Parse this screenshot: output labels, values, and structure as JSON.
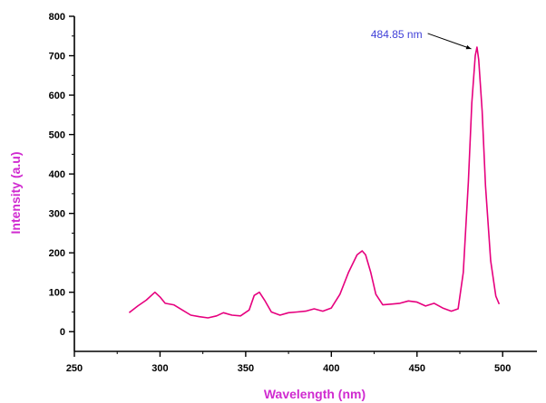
{
  "chart_data": {
    "type": "line",
    "xlabel": "Wavelength (nm)",
    "ylabel": "Intensity (a.u)",
    "xlim": [
      250,
      520
    ],
    "ylim": [
      -50,
      800
    ],
    "x_ticks": [
      250,
      300,
      350,
      400,
      450,
      500
    ],
    "y_ticks": [
      0,
      100,
      200,
      300,
      400,
      500,
      600,
      700,
      800
    ],
    "grid": false,
    "colors": {
      "line": "#e6007e",
      "axis_title": "#d02bd0",
      "annotation": "#3f3fd8"
    },
    "annotation": {
      "text": "484.85 nm",
      "x": 484.85,
      "y": 722
    },
    "series": [
      {
        "x": [
          282,
          287,
          292,
          297,
          300,
          303,
          308,
          313,
          318,
          323,
          328,
          333,
          337,
          342,
          347,
          352,
          355,
          358,
          361,
          365,
          370,
          375,
          380,
          385,
          390,
          395,
          400,
          405,
          410,
          415,
          418,
          420,
          423,
          426,
          430,
          435,
          440,
          445,
          450,
          455,
          460,
          465,
          470,
          474,
          477,
          480,
          482,
          484,
          485,
          486,
          488,
          490,
          493,
          496,
          498
        ],
        "y": [
          48,
          65,
          80,
          100,
          88,
          72,
          68,
          55,
          42,
          38,
          35,
          40,
          48,
          42,
          40,
          55,
          92,
          100,
          80,
          50,
          42,
          48,
          50,
          52,
          58,
          52,
          60,
          95,
          150,
          195,
          205,
          195,
          150,
          95,
          68,
          70,
          72,
          78,
          75,
          65,
          72,
          60,
          52,
          58,
          150,
          380,
          580,
          700,
          722,
          690,
          560,
          370,
          180,
          90,
          70
        ]
      }
    ]
  }
}
